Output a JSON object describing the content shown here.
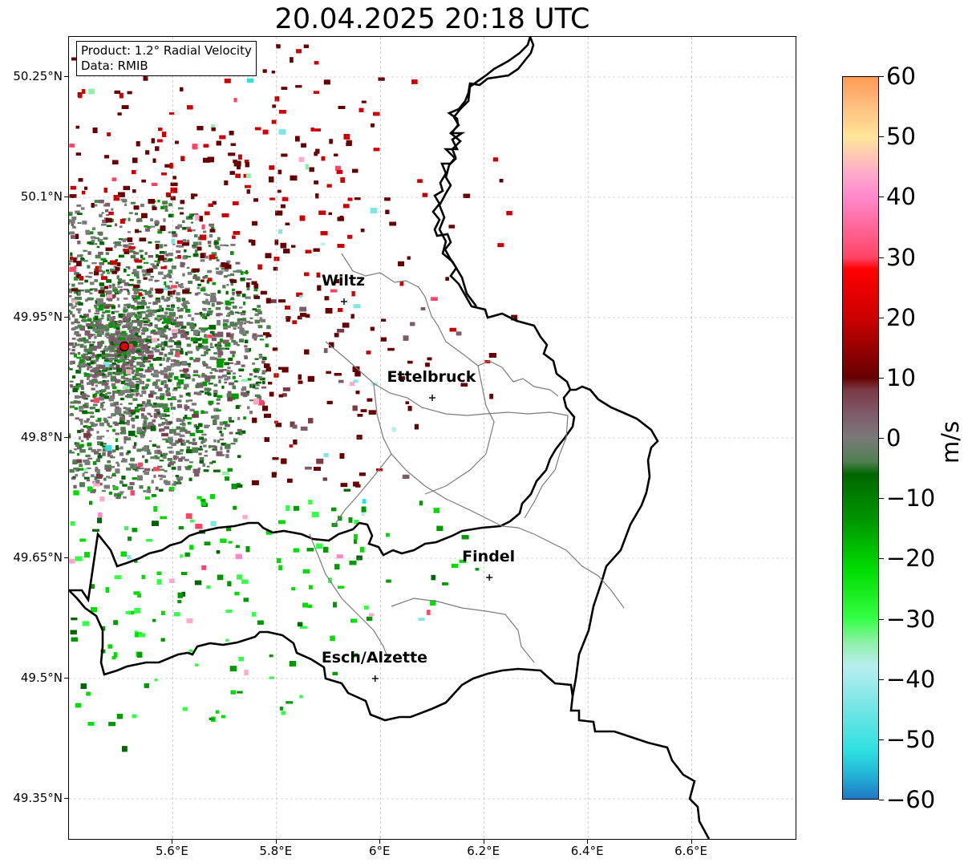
{
  "title": "20.04.2025 20:18 UTC",
  "legend": {
    "product": "Product: 1.2° Radial Velocity",
    "source": "Data: RMIB"
  },
  "map": {
    "lon_range": [
      5.4,
      6.8
    ],
    "lat_range": [
      49.3,
      50.3
    ],
    "radar_site": {
      "lon": 5.505,
      "lat": 49.915
    },
    "gridlines": true,
    "x_ticks": [
      {
        "value": 5.6,
        "label": "5.6°E"
      },
      {
        "value": 5.8,
        "label": "5.8°E"
      },
      {
        "value": 6.0,
        "label": "6°E"
      },
      {
        "value": 6.2,
        "label": "6.2°E"
      },
      {
        "value": 6.4,
        "label": "6.4°E"
      },
      {
        "value": 6.6,
        "label": "6.6°E"
      }
    ],
    "y_ticks": [
      {
        "value": 50.25,
        "label": "50.25°N"
      },
      {
        "value": 50.1,
        "label": "50.1°N"
      },
      {
        "value": 49.95,
        "label": "49.95°N"
      },
      {
        "value": 49.8,
        "label": "49.8°N"
      },
      {
        "value": 49.65,
        "label": "49.65°N"
      },
      {
        "value": 49.5,
        "label": "49.5°N"
      },
      {
        "value": 49.35,
        "label": "49.35°N"
      }
    ],
    "cities": [
      {
        "name": "Wiltz",
        "lon": 5.93,
        "lat": 49.97
      },
      {
        "name": "Ettelbruck",
        "lon": 6.1,
        "lat": 49.85
      },
      {
        "name": "Findel",
        "lon": 6.21,
        "lat": 49.626
      },
      {
        "name": "Esch/Alzette",
        "lon": 5.99,
        "lat": 49.5
      }
    ]
  },
  "colorbar": {
    "unit": "m/s",
    "min": -60,
    "max": 60,
    "ticks": [
      {
        "value": 60,
        "label": "60"
      },
      {
        "value": 50,
        "label": "50"
      },
      {
        "value": 40,
        "label": "40"
      },
      {
        "value": 30,
        "label": "30"
      },
      {
        "value": 20,
        "label": "20"
      },
      {
        "value": 10,
        "label": "10"
      },
      {
        "value": 0,
        "label": "0"
      },
      {
        "value": -10,
        "label": "−10"
      },
      {
        "value": -20,
        "label": "−20"
      },
      {
        "value": -30,
        "label": "−30"
      },
      {
        "value": -40,
        "label": "−40"
      },
      {
        "value": -50,
        "label": "−50"
      },
      {
        "value": -60,
        "label": "−60"
      }
    ],
    "stops": [
      {
        "value": -60,
        "color": "#1f77c4"
      },
      {
        "value": -56,
        "color": "#22b4d6"
      },
      {
        "value": -52,
        "color": "#2ee0e0"
      },
      {
        "value": -44,
        "color": "#7ee6e6"
      },
      {
        "value": -38,
        "color": "#b8eef0"
      },
      {
        "value": -34,
        "color": "#8ff0a8"
      },
      {
        "value": -30,
        "color": "#33ff44"
      },
      {
        "value": -22,
        "color": "#00dd00"
      },
      {
        "value": -14,
        "color": "#009900"
      },
      {
        "value": -6,
        "color": "#006600"
      },
      {
        "value": -4,
        "color": "#4f7f4f"
      },
      {
        "value": 0,
        "color": "#7a7a7a"
      },
      {
        "value": 4,
        "color": "#7f5a6a"
      },
      {
        "value": 8,
        "color": "#7a3a46"
      },
      {
        "value": 10,
        "color": "#660000"
      },
      {
        "value": 20,
        "color": "#cc0000"
      },
      {
        "value": 28,
        "color": "#ff0000"
      },
      {
        "value": 30,
        "color": "#ff4466"
      },
      {
        "value": 40,
        "color": "#ff88cc"
      },
      {
        "value": 44,
        "color": "#ffaacc"
      },
      {
        "value": 50,
        "color": "#ffe699"
      },
      {
        "value": 55,
        "color": "#ffc080"
      },
      {
        "value": 60,
        "color": "#ff9955"
      }
    ]
  }
}
